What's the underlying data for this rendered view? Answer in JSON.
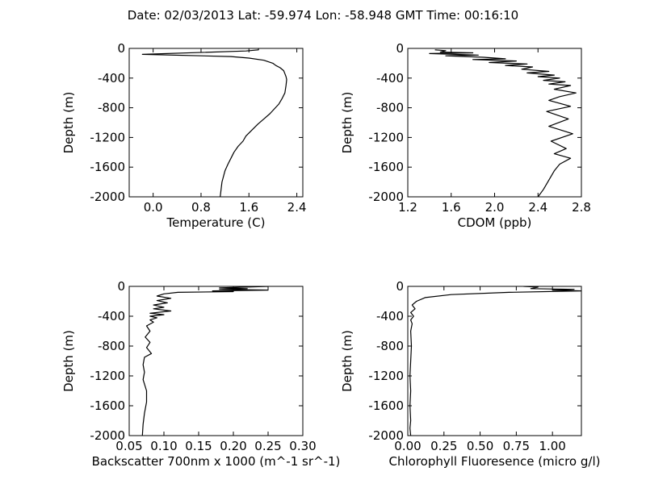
{
  "figure": {
    "title": "Date: 02/03/2013  Lat:  -59.974 Lon:  -58.948  GMT Time: 00:16:10"
  },
  "chart_data": [
    {
      "type": "line",
      "xlabel": "Temperature (C)",
      "ylabel": "Depth (m)",
      "xlim": [
        -0.4,
        2.5
      ],
      "ylim": [
        -2000,
        0
      ],
      "xticks": [
        0.0,
        0.8,
        1.6,
        2.4
      ],
      "xtick_labels": [
        "0.0",
        "0.8",
        "1.6",
        "2.4"
      ],
      "yticks": [
        0,
        -400,
        -800,
        -1200,
        -1600,
        -2000
      ],
      "ytick_labels": [
        "0",
        "-400",
        "-800",
        "-1200",
        "-1600",
        "-2000"
      ],
      "grid": false,
      "series": [
        {
          "x": [
            1.76,
            1.76,
            1.55,
            -0.18,
            1.3,
            1.6,
            1.85,
            2.0,
            2.05,
            2.12,
            2.18,
            2.2,
            2.22,
            2.23,
            2.22,
            2.2,
            2.15,
            2.1,
            2.02,
            1.95,
            1.85,
            1.75,
            1.65,
            1.55,
            1.5,
            1.42,
            1.35,
            1.3,
            1.25,
            1.2,
            1.15,
            1.12
          ],
          "y": [
            0,
            -20,
            -35,
            -80,
            -110,
            -130,
            -160,
            -200,
            -230,
            -260,
            -300,
            -340,
            -380,
            -420,
            -500,
            -600,
            -680,
            -750,
            -820,
            -880,
            -950,
            -1020,
            -1100,
            -1180,
            -1250,
            -1320,
            -1400,
            -1480,
            -1560,
            -1650,
            -1800,
            -2000
          ]
        }
      ]
    },
    {
      "type": "line",
      "xlabel": "CDOM (ppb)",
      "ylabel": "Depth (m)",
      "xlim": [
        1.2,
        2.8
      ],
      "ylim": [
        -2000,
        0
      ],
      "xticks": [
        1.2,
        1.6,
        2.0,
        2.4,
        2.8
      ],
      "xtick_labels": [
        "1.2",
        "1.6",
        "2.0",
        "2.4",
        "2.8"
      ],
      "yticks": [
        0,
        -400,
        -800,
        -1200,
        -1600,
        -2000
      ],
      "ytick_labels": [
        "0",
        "-400",
        "-800",
        "-1200",
        "-1600",
        "-2000"
      ],
      "grid": false,
      "series": [
        {
          "x": [
            1.45,
            1.55,
            1.5,
            1.8,
            1.4,
            1.85,
            1.55,
            1.9,
            2.1,
            1.8,
            2.2,
            1.95,
            2.3,
            2.1,
            2.35,
            2.25,
            2.5,
            2.3,
            2.55,
            2.4,
            2.6,
            2.45,
            2.65,
            2.5,
            2.7,
            2.55,
            2.75,
            2.6,
            2.5,
            2.7,
            2.48,
            2.68,
            2.5,
            2.72,
            2.52,
            2.66,
            2.55,
            2.7,
            2.6,
            2.55,
            2.45,
            2.4
          ],
          "y": [
            -20,
            -30,
            -50,
            -60,
            -70,
            -90,
            -100,
            -120,
            -140,
            -150,
            -170,
            -190,
            -210,
            -230,
            -250,
            -280,
            -310,
            -330,
            -360,
            -380,
            -400,
            -430,
            -450,
            -480,
            -500,
            -550,
            -600,
            -650,
            -700,
            -780,
            -850,
            -950,
            -1050,
            -1150,
            -1250,
            -1350,
            -1420,
            -1480,
            -1560,
            -1650,
            -1900,
            -2000
          ]
        }
      ]
    },
    {
      "type": "line",
      "xlabel": "Backscatter 700nm x 1000 (m^-1 sr^-1)",
      "ylabel": "Depth (m)",
      "xlim": [
        0.05,
        0.3
      ],
      "ylim": [
        -2000,
        0
      ],
      "xticks": [
        0.05,
        0.1,
        0.15,
        0.2,
        0.25,
        0.3
      ],
      "xtick_labels": [
        "0.05",
        "0.10",
        "0.15",
        "0.20",
        "0.25",
        "0.30"
      ],
      "yticks": [
        0,
        -400,
        -800,
        -1200,
        -1600,
        -2000
      ],
      "ytick_labels": [
        "0",
        "-400",
        "-800",
        "-1200",
        "-1600",
        "-2000"
      ],
      "grid": false,
      "series": [
        {
          "x": [
            0.25,
            0.18,
            0.22,
            0.18,
            0.25,
            0.17,
            0.2,
            0.12,
            0.1,
            0.09,
            0.11,
            0.09,
            0.105,
            0.085,
            0.1,
            0.085,
            0.11,
            0.08,
            0.1,
            0.08,
            0.09,
            0.08,
            0.085,
            0.075,
            0.08,
            0.073,
            0.08,
            0.075,
            0.082,
            0.072,
            0.07,
            0.072,
            0.07,
            0.075,
            0.075,
            0.072,
            0.07,
            0.069
          ],
          "y": [
            0,
            -20,
            -30,
            -40,
            -50,
            -60,
            -70,
            -80,
            -100,
            -130,
            -160,
            -190,
            -220,
            -250,
            -280,
            -300,
            -330,
            -360,
            -380,
            -400,
            -420,
            -450,
            -480,
            -530,
            -600,
            -680,
            -750,
            -820,
            -900,
            -950,
            -1050,
            -1150,
            -1250,
            -1400,
            -1550,
            -1700,
            -1850,
            -2000
          ]
        }
      ]
    },
    {
      "type": "line",
      "xlabel": "Chlorophyll Fluoresence (micro g/l)",
      "ylabel": "Depth (m)",
      "xlim": [
        0.0,
        1.2
      ],
      "ylim": [
        -2000,
        0
      ],
      "xticks": [
        0.0,
        0.25,
        0.5,
        0.75,
        1.0
      ],
      "xtick_labels": [
        "0.00",
        "0.25",
        "0.50",
        "0.75",
        "1.00"
      ],
      "yticks": [
        0,
        -400,
        -800,
        -1200,
        -1600,
        -2000
      ],
      "ytick_labels": [
        "0",
        "-400",
        "-800",
        "-1200",
        "-1600",
        "-2000"
      ],
      "grid": false,
      "series": [
        {
          "x": [
            0.8,
            0.9,
            0.85,
            1.15,
            1.0,
            1.2,
            0.7,
            0.3,
            0.12,
            0.06,
            0.03,
            0.05,
            0.02,
            0.04,
            0.02,
            0.03,
            0.02,
            0.025,
            0.02,
            0.015,
            0.02,
            0.015,
            0.02,
            0.015,
            0.02
          ],
          "y": [
            0,
            -10,
            -30,
            -40,
            -50,
            -60,
            -80,
            -110,
            -150,
            -200,
            -250,
            -300,
            -350,
            -400,
            -450,
            -500,
            -600,
            -800,
            -1000,
            -1200,
            -1400,
            -1600,
            -1800,
            -1900,
            -2000
          ]
        }
      ]
    }
  ]
}
